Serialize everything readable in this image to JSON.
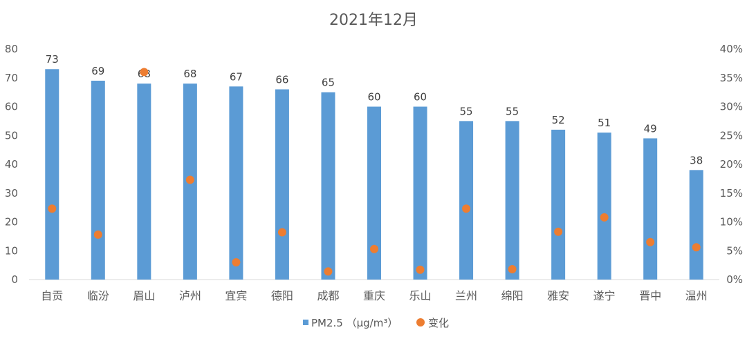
{
  "chart_data": {
    "type": "bar",
    "title": "2021年12月",
    "categories": [
      "自贡",
      "临汾",
      "眉山",
      "泸州",
      "宜宾",
      "德阳",
      "成都",
      "重庆",
      "乐山",
      "兰州",
      "绵阳",
      "雅安",
      "遂宁",
      "晋中",
      "温州"
    ],
    "series": [
      {
        "name": "PM2.5 （μg/m³）",
        "type": "bar",
        "axis": "left",
        "color": "#5B9BD5",
        "values": [
          73,
          69,
          68,
          68,
          67,
          66,
          65,
          60,
          60,
          55,
          55,
          52,
          51,
          49,
          38
        ]
      },
      {
        "name": "变化",
        "type": "scatter",
        "axis": "right",
        "color": "#ED7D31",
        "values": [
          12.3,
          7.8,
          36.0,
          17.3,
          3.0,
          8.2,
          1.4,
          5.3,
          1.7,
          12.3,
          1.8,
          8.3,
          10.8,
          6.5,
          5.6
        ]
      }
    ],
    "ylim_left": [
      0,
      80
    ],
    "yticks_left": [
      "0",
      "10",
      "20",
      "30",
      "40",
      "50",
      "60",
      "70",
      "80"
    ],
    "ylim_right": [
      0,
      40
    ],
    "yticks_right": [
      "0%",
      "5%",
      "10%",
      "15%",
      "20%",
      "25%",
      "30%",
      "35%",
      "40%"
    ],
    "grid": false,
    "legend_position": "bottom"
  }
}
